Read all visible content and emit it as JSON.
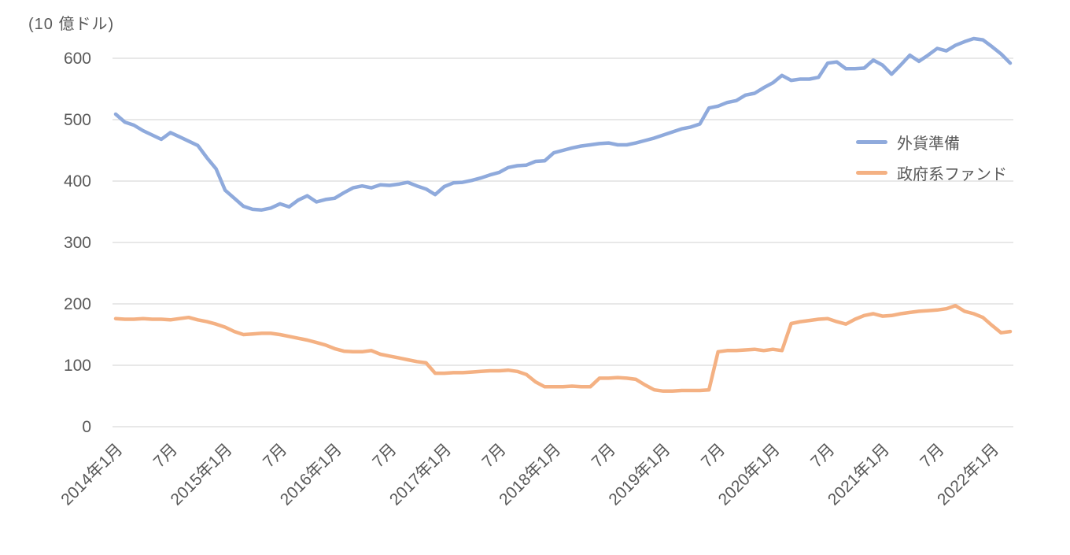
{
  "unit_label": "(10 億ドル)",
  "colors": {
    "background": "#FFFFFF",
    "grid": "#D9D9D9",
    "axis_text": "#595959",
    "fx_reserves": "#8FAADC",
    "sovereign_fund": "#F4B183"
  },
  "legend": {
    "items": [
      {
        "label": "外貨準備",
        "color": "#8FAADC"
      },
      {
        "label": "政府系ファンド",
        "color": "#F4B183"
      }
    ]
  },
  "chart_data": {
    "type": "line",
    "title": "",
    "ylabel": "(10 億ドル)",
    "ylim": [
      0,
      600
    ],
    "y_ticks": [
      0,
      100,
      200,
      300,
      400,
      500,
      600
    ],
    "grid": "horizontal",
    "legend_position": "right-inside",
    "x_unit": "month",
    "x_range": [
      "2014年1月",
      "2022年3月"
    ],
    "x_tick_positions": [
      0,
      6,
      12,
      18,
      24,
      30,
      36,
      42,
      48,
      54,
      60,
      66,
      72,
      78,
      84,
      90,
      96
    ],
    "x_tick_labels": [
      "2014年1月",
      "7月",
      "2015年1月",
      "7月",
      "2016年1月",
      "7月",
      "2017年1月",
      "7月",
      "2018年1月",
      "7月",
      "2019年1月",
      "7月",
      "2020年1月",
      "7月",
      "2021年1月",
      "7月",
      "2022年1月"
    ],
    "series": [
      {
        "name": "外貨準備",
        "color": "#8FAADC",
        "values": [
          509,
          496,
          491,
          482,
          475,
          468,
          479,
          472,
          465,
          458,
          438,
          420,
          385,
          372,
          359,
          354,
          353,
          356,
          363,
          358,
          369,
          376,
          366,
          370,
          372,
          381,
          389,
          392,
          389,
          394,
          393,
          395,
          398,
          392,
          387,
          378,
          391,
          397,
          398,
          401,
          405,
          410,
          414,
          422,
          425,
          426,
          432,
          433,
          446,
          450,
          454,
          457,
          459,
          461,
          462,
          459,
          459,
          462,
          466,
          470,
          475,
          480,
          485,
          488,
          493,
          519,
          522,
          528,
          531,
          540,
          543,
          552,
          560,
          572,
          564,
          566,
          566,
          569,
          592,
          594,
          583,
          583,
          584,
          597,
          589,
          574,
          589,
          605,
          595,
          605,
          616,
          612,
          621,
          627,
          632,
          630,
          619,
          607,
          592
        ]
      },
      {
        "name": "政府系ファンド",
        "color": "#F4B183",
        "values": [
          176,
          175,
          175,
          176,
          175,
          175,
          174,
          176,
          178,
          174,
          171,
          167,
          162,
          155,
          150,
          151,
          152,
          152,
          150,
          147,
          144,
          141,
          137,
          133,
          127,
          123,
          122,
          122,
          124,
          118,
          115,
          112,
          109,
          106,
          104,
          87,
          87,
          88,
          88,
          89,
          90,
          91,
          91,
          92,
          90,
          85,
          73,
          65,
          65,
          65,
          66,
          65,
          65,
          79,
          79,
          80,
          79,
          77,
          68,
          60,
          58,
          58,
          59,
          59,
          59,
          60,
          122,
          124,
          124,
          125,
          126,
          124,
          126,
          124,
          168,
          171,
          173,
          175,
          176,
          171,
          167,
          175,
          181,
          184,
          180,
          181,
          184,
          186,
          188,
          189,
          190,
          192,
          197,
          188,
          184,
          178,
          165,
          153,
          155
        ]
      }
    ]
  }
}
